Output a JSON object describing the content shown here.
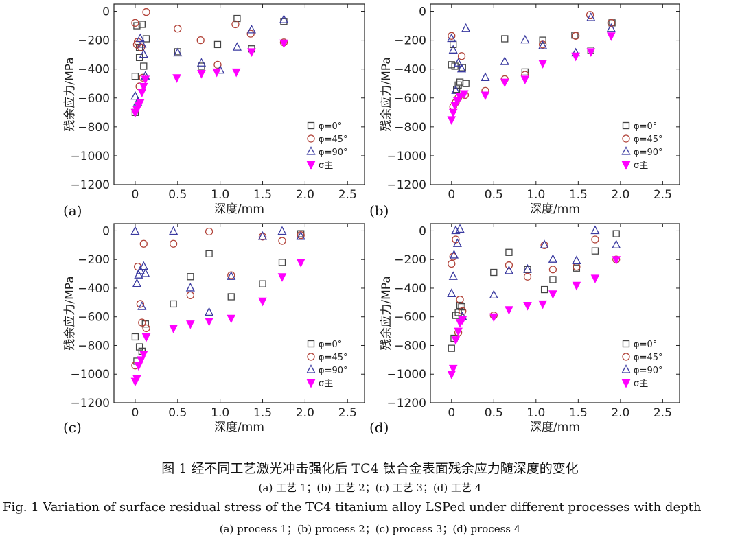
{
  "caption": {
    "zh": "图 1   经不同工艺激光冲击强化后 TC4 钛合金表面残余应力随深度的变化",
    "zh_sub": "(a) 工艺 1；(b) 工艺 2；(c) 工艺 3；(d) 工艺 4",
    "en": "Fig. 1   Variation of surface residual stress of the TC4 titanium alloy LSPed under different processes with depth",
    "en_sub": "(a)  process 1；(b)  process 2；(c)  process 3；(d)  process 4"
  },
  "colors": {
    "phi0": "#444444",
    "phi45": "#b2443a",
    "phi90": "#3a3aa0",
    "sigma": "#ff00ff"
  },
  "chart_data": [
    {
      "type": "scatter",
      "panel": "(a)",
      "xlabel": "深度/mm",
      "ylabel": "残余应力/MPa",
      "xlim": [
        -0.25,
        2.7
      ],
      "ylim": [
        -1200,
        50
      ],
      "xticks": [
        0,
        0.5,
        1.0,
        1.5,
        2.0,
        2.5
      ],
      "xtick_labels": [
        "0",
        "0.5",
        "1.0",
        "1.5",
        "2.0",
        "2.5"
      ],
      "yticks": [
        0,
        -200,
        -400,
        -600,
        -800,
        -1000,
        -1200
      ],
      "ytick_labels": [
        "0",
        "−200",
        "−400",
        "−600",
        "−800",
        "−1000",
        "−1200"
      ],
      "legend_position": "bottom-right",
      "series": [
        {
          "name": "φ=0°",
          "marker": "square",
          "color_key": "phi0",
          "x": [
            0.0,
            0.02,
            0.05,
            0.08,
            0.1,
            0.13,
            0.0,
            0.05,
            0.5,
            0.78,
            0.97,
            1.2,
            1.37,
            1.75
          ],
          "y": [
            -450,
            -100,
            -320,
            -90,
            -380,
            -190,
            -700,
            -250,
            -280,
            -380,
            -230,
            -50,
            -260,
            -70
          ]
        },
        {
          "name": "φ=45°",
          "marker": "circle",
          "color_key": "phi45",
          "x": [
            0.0,
            0.02,
            0.05,
            0.07,
            0.09,
            0.13,
            0.03,
            0.5,
            0.77,
            0.97,
            1.18,
            1.36,
            1.75
          ],
          "y": [
            -80,
            -230,
            -520,
            -250,
            -460,
            -5,
            -210,
            -120,
            -200,
            -370,
            -90,
            -155,
            -215
          ]
        },
        {
          "name": "φ=90°",
          "marker": "triangle",
          "color_key": "phi90",
          "x": [
            0.0,
            0.03,
            0.06,
            0.08,
            0.1,
            0.12,
            0.5,
            0.78,
            1.0,
            1.2,
            1.37,
            1.75
          ],
          "y": [
            -590,
            -630,
            -190,
            -230,
            -300,
            -450,
            -290,
            -360,
            -410,
            -250,
            -130,
            -60
          ]
        },
        {
          "name": "σ主",
          "marker": "triangle-down-filled",
          "color_key": "sigma",
          "x": [
            0.0,
            0.02,
            0.04,
            0.06,
            0.08,
            0.1,
            0.12,
            0.49,
            0.78,
            0.96,
            1.19,
            1.37,
            1.75
          ],
          "y": [
            -700,
            -680,
            -650,
            -630,
            -560,
            -520,
            -470,
            -460,
            -430,
            -420,
            -420,
            -280,
            -220
          ]
        }
      ]
    },
    {
      "type": "scatter",
      "panel": "(b)",
      "xlabel": "深度/mm",
      "ylabel": "残余应力/MPa",
      "xlim": [
        -0.25,
        2.7
      ],
      "ylim": [
        -1200,
        50
      ],
      "xticks": [
        0,
        0.5,
        1.0,
        1.5,
        2.0,
        2.5
      ],
      "xtick_labels": [
        "0",
        "0.5",
        "1.0",
        "1.5",
        "2.0",
        "2.5"
      ],
      "yticks": [
        0,
        -200,
        -400,
        -600,
        -800,
        -1000,
        -1200
      ],
      "ytick_labels": [
        "0",
        "−200",
        "−400",
        "−600",
        "−800",
        "−1000",
        "−1200"
      ],
      "legend_position": "bottom-right",
      "series": [
        {
          "name": "φ=0°",
          "marker": "square",
          "color_key": "phi0",
          "x": [
            0.0,
            0.02,
            0.04,
            0.06,
            0.08,
            0.1,
            0.13,
            0.17,
            0.63,
            0.87,
            1.08,
            1.46,
            1.65,
            1.9
          ],
          "y": [
            -370,
            -230,
            -380,
            -540,
            -510,
            -490,
            -390,
            -500,
            -190,
            -420,
            -200,
            -165,
            -270,
            -80
          ]
        },
        {
          "name": "φ=45°",
          "marker": "circle",
          "color_key": "phi45",
          "x": [
            0.0,
            0.02,
            0.05,
            0.08,
            0.12,
            0.16,
            0.4,
            0.63,
            0.87,
            1.08,
            1.47,
            1.64,
            1.89
          ],
          "y": [
            -170,
            -660,
            -630,
            -600,
            -310,
            -580,
            -550,
            -470,
            -440,
            -230,
            -170,
            -25,
            -80
          ]
        },
        {
          "name": "φ=90°",
          "marker": "triangle",
          "color_key": "phi90",
          "x": [
            0.0,
            0.02,
            0.05,
            0.08,
            0.12,
            0.17,
            0.4,
            0.63,
            0.87,
            1.08,
            1.47,
            1.65,
            1.89
          ],
          "y": [
            -190,
            -270,
            -550,
            -360,
            -400,
            -120,
            -460,
            -350,
            -200,
            -240,
            -290,
            -45,
            -120
          ]
        },
        {
          "name": "σ主",
          "marker": "triangle-down-filled",
          "color_key": "sigma",
          "x": [
            0.0,
            0.02,
            0.04,
            0.07,
            0.1,
            0.15,
            0.4,
            0.63,
            0.87,
            1.08,
            1.47,
            1.65,
            1.89
          ],
          "y": [
            -750,
            -700,
            -650,
            -620,
            -590,
            -570,
            -580,
            -490,
            -470,
            -360,
            -310,
            -280,
            -170
          ]
        }
      ]
    },
    {
      "type": "scatter",
      "panel": "(c)",
      "xlabel": "深度/mm",
      "ylabel": "残余应力/MPa",
      "xlim": [
        -0.25,
        2.7
      ],
      "ylim": [
        -1200,
        50
      ],
      "xticks": [
        0,
        0.5,
        1.0,
        1.5,
        2.0,
        2.5
      ],
      "xtick_labels": [
        "0",
        "0.5",
        "1.0",
        "1.5",
        "2.0",
        "2.5"
      ],
      "yticks": [
        0,
        -200,
        -400,
        -600,
        -800,
        -1000,
        -1200
      ],
      "ytick_labels": [
        "0",
        "−200",
        "−400",
        "−600",
        "−800",
        "−1000",
        "−1200"
      ],
      "legend_position": "bottom-right",
      "series": [
        {
          "name": "φ=0°",
          "marker": "square",
          "color_key": "phi0",
          "x": [
            0.0,
            0.02,
            0.05,
            0.08,
            0.12,
            0.45,
            0.65,
            0.87,
            1.13,
            1.5,
            1.73,
            1.95
          ],
          "y": [
            -740,
            -910,
            -810,
            -840,
            -650,
            -510,
            -320,
            -160,
            -460,
            -370,
            -220,
            -20
          ]
        },
        {
          "name": "φ=45°",
          "marker": "circle",
          "color_key": "phi45",
          "x": [
            0.0,
            0.03,
            0.06,
            0.08,
            0.1,
            0.13,
            0.45,
            0.65,
            0.87,
            1.13,
            1.5,
            1.73,
            1.95
          ],
          "y": [
            -940,
            -250,
            -510,
            -640,
            -90,
            -680,
            -90,
            -450,
            -5,
            -310,
            -40,
            -70,
            -30
          ]
        },
        {
          "name": "φ=90°",
          "marker": "triangle",
          "color_key": "phi90",
          "x": [
            0.0,
            0.02,
            0.04,
            0.06,
            0.08,
            0.1,
            0.12,
            0.45,
            0.65,
            0.87,
            1.13,
            1.5,
            1.73,
            1.95
          ],
          "y": [
            -5,
            -370,
            -310,
            -280,
            -530,
            -250,
            -300,
            -5,
            -400,
            -570,
            -320,
            -40,
            -5,
            -40
          ]
        },
        {
          "name": "σ主",
          "marker": "triangle-down-filled",
          "color_key": "sigma",
          "x": [
            0.0,
            0.02,
            0.04,
            0.07,
            0.1,
            0.13,
            0.45,
            0.65,
            0.87,
            1.13,
            1.5,
            1.73,
            1.95
          ],
          "y": [
            -1050,
            -1030,
            -940,
            -900,
            -860,
            -740,
            -680,
            -650,
            -630,
            -610,
            -490,
            -320,
            -220
          ]
        }
      ]
    },
    {
      "type": "scatter",
      "panel": "(d)",
      "xlabel": "深度/mm",
      "ylabel": "残余应力/MPa",
      "xlim": [
        -0.25,
        2.7
      ],
      "ylim": [
        -1200,
        50
      ],
      "xticks": [
        0,
        0.5,
        1.0,
        1.5,
        2.0,
        2.5
      ],
      "xtick_labels": [
        "0",
        "0.5",
        "1.0",
        "1.5",
        "2.0",
        "2.5"
      ],
      "yticks": [
        0,
        -200,
        -400,
        -600,
        -800,
        -1000,
        -1200
      ],
      "ytick_labels": [
        "0",
        "−200",
        "−400",
        "−600",
        "−800",
        "−1000",
        "−1200"
      ],
      "legend_position": "bottom-right",
      "series": [
        {
          "name": "φ=0°",
          "marker": "square",
          "color_key": "phi0",
          "x": [
            0.0,
            0.03,
            0.05,
            0.08,
            0.1,
            0.12,
            0.5,
            0.68,
            0.9,
            1.1,
            1.2,
            1.48,
            1.7,
            1.95
          ],
          "y": [
            -820,
            -750,
            -590,
            -570,
            -520,
            -530,
            -290,
            -150,
            -270,
            -410,
            -340,
            -260,
            -140,
            -20
          ]
        },
        {
          "name": "φ=45°",
          "marker": "circle",
          "color_key": "phi45",
          "x": [
            0.0,
            0.02,
            0.05,
            0.08,
            0.1,
            0.13,
            0.5,
            0.68,
            0.9,
            1.1,
            1.2,
            1.48,
            1.7,
            1.95
          ],
          "y": [
            -230,
            -180,
            -60,
            -710,
            -480,
            -560,
            -590,
            -240,
            -320,
            -100,
            -270,
            -250,
            -60,
            -200
          ]
        },
        {
          "name": "φ=90°",
          "marker": "triangle",
          "color_key": "phi90",
          "x": [
            0.0,
            0.02,
            0.03,
            0.05,
            0.07,
            0.1,
            0.13,
            0.5,
            0.68,
            0.9,
            1.1,
            1.2,
            1.48,
            1.7,
            1.95
          ],
          "y": [
            -440,
            -320,
            -170,
            0,
            -90,
            10,
            -600,
            -450,
            -280,
            -270,
            -100,
            -200,
            -210,
            0,
            -100
          ]
        },
        {
          "name": "σ主",
          "marker": "triangle-down-filled",
          "color_key": "sigma",
          "x": [
            0.0,
            0.02,
            0.05,
            0.08,
            0.1,
            0.13,
            0.5,
            0.68,
            0.9,
            1.08,
            1.2,
            1.48,
            1.7,
            1.95
          ],
          "y": [
            -1000,
            -960,
            -760,
            -700,
            -640,
            -620,
            -600,
            -550,
            -520,
            -510,
            -440,
            -380,
            -330,
            -200
          ]
        }
      ]
    }
  ]
}
